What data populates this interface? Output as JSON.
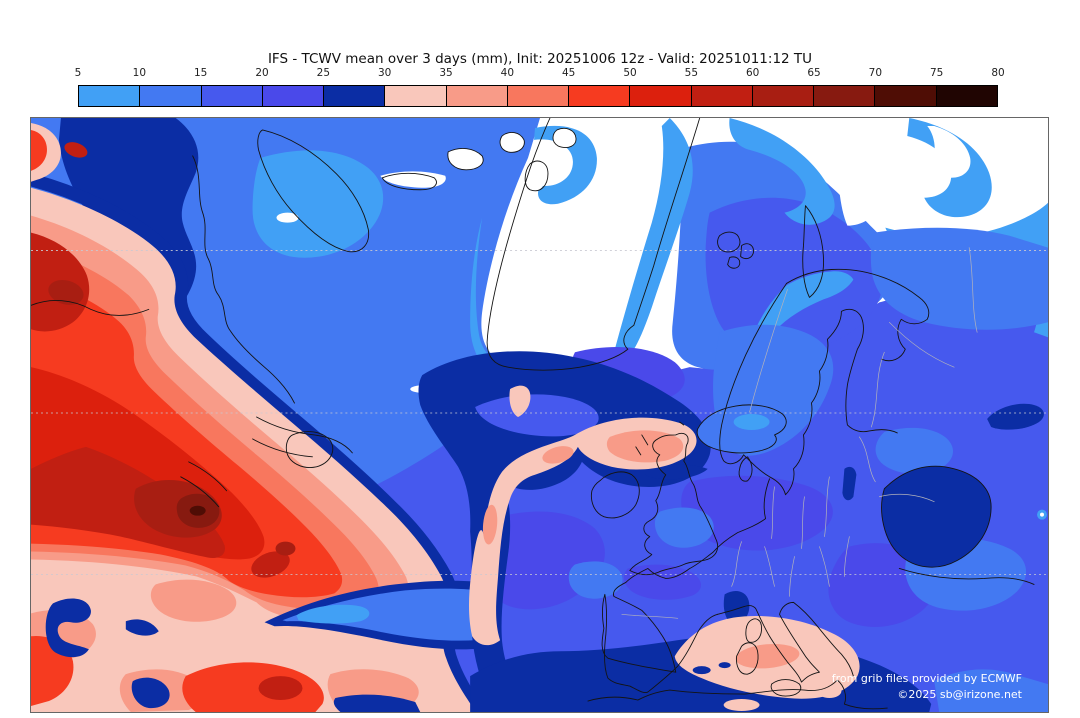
{
  "title": "IFS - TCWV mean over 3 days (mm), Init: 20251006 12z - Valid: 20251011:12 TU",
  "attribution": {
    "line1": "from grib files provided by ECMWF",
    "line2": "©2025 sb@irizone.net"
  },
  "chart_data": {
    "type": "heatmap",
    "title": "IFS - TCWV mean over 3 days (mm), Init: 20251006 12z - Valid: 20251011:12 TU",
    "model": "IFS",
    "variable": "TCWV mean over 3 days",
    "units": "mm",
    "init_time": "20251006 12z",
    "valid_time": "20251011:12 TU",
    "projection": "Europe / North Atlantic regional view",
    "colorbar": {
      "orientation": "horizontal",
      "position": "top",
      "levels": [
        5,
        10,
        15,
        20,
        25,
        30,
        35,
        40,
        45,
        50,
        55,
        60,
        65,
        70,
        75,
        80
      ],
      "colors": [
        "#41a0f5",
        "#4379f2",
        "#4659ee",
        "#4a49ea",
        "#0b2da4",
        "#f9c7bb",
        "#f89b88",
        "#f8775e",
        "#f63b20",
        "#dc200d",
        "#c11f12",
        "#a81e12",
        "#871a10",
        "#4f0d05",
        "#200502"
      ],
      "below_min_color": "#ffffff"
    },
    "map_colors": {
      "coastline": "#141414",
      "country_borders": "#b2b2bc",
      "graticule": "#c9c9d2",
      "frame": "#666666"
    },
    "field_features": [
      {
        "region": "western North Atlantic plume (left edge)",
        "value_mm": "45-70",
        "note": "broad moist plume, dark-red core ~65-70 mm near 197,508 px"
      },
      {
        "region": "Greenland and high Arctic",
        "value_mm": "<5",
        "note": "white areas below the lowest contour"
      },
      {
        "region": "mid-Atlantic cyclonic swirl toward Scotland/Ireland",
        "value_mm": "25-40",
        "note": "navy 25-30 mm band wrapping a pale 30-40 mm tongue"
      },
      {
        "region": "European mainland",
        "value_mm": "15-25"
      },
      {
        "region": "Scandinavia and Norwegian Sea",
        "value_mm": "5-20"
      },
      {
        "region": "western Mediterranean",
        "value_mm": "25-40",
        "note": "pale 30-40 mm blob surrounded by 25-30 mm navy"
      },
      {
        "region": "Black Sea",
        "value_mm": "25-30"
      },
      {
        "region": "subtropical Atlantic (bottom-left)",
        "value_mm": "30-40 with 45-60 mm patches"
      }
    ]
  }
}
